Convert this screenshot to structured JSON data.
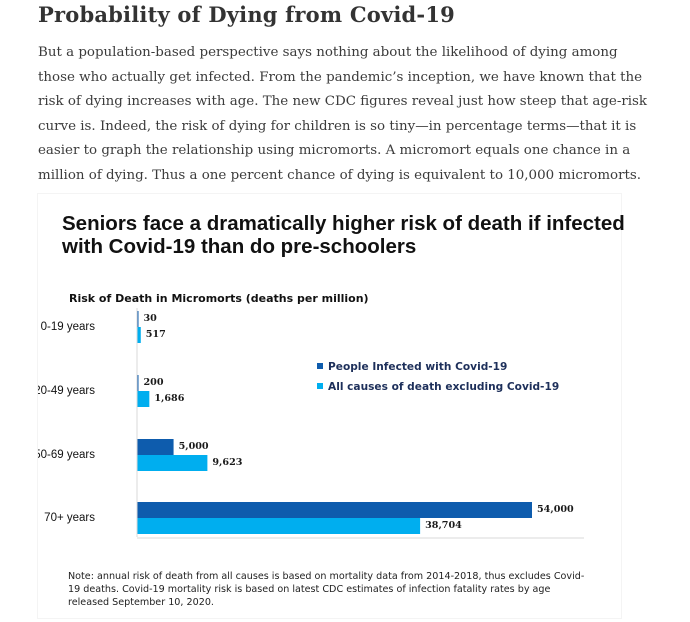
{
  "article": {
    "heading": "Probability of Dying from Covid-19",
    "paragraph": "But a population-based perspective says nothing about the likelihood of dying among those who actually get infected. From the pandemic’s inception, we have known that the risk of dying increases with age. The new CDC figures reveal just how steep that age-risk curve is. Indeed, the risk of dying for children is so tiny—in percentage terms—that it is easier to graph the relationship using micromorts. A micromort equals one chance in a million of dying. Thus a one percent chance of dying is equivalent to 10,000 micromorts."
  },
  "chart": {
    "title_line1": "Seniors face a dramatically higher risk of death if infected",
    "title_line2": "with Covid-19 than do pre-schoolers",
    "note": "Note: annual risk of death from all causes is based on mortality data from 2014-2018, thus excludes Covid-19 deaths. Covid-19 mortality risk is based on latest CDC estimates of infection fatality rates by age released September 10, 2020."
  },
  "chart_data": {
    "type": "bar",
    "orientation": "horizontal",
    "subtitle": "Risk of Death in Micromorts (deaths per million)",
    "categories": [
      "0-19 years",
      "20-49 years",
      "50-69 years",
      "70+ years"
    ],
    "series": [
      {
        "name": "People Infected with Covid-19",
        "color": "#0e5cad",
        "values": [
          30,
          200,
          5000,
          54000
        ],
        "labels": [
          "30",
          "200",
          "5,000",
          "54,000"
        ]
      },
      {
        "name": "All causes of death excluding Covid-19",
        "color": "#00aeef",
        "values": [
          517,
          1686,
          9623,
          38704
        ],
        "labels": [
          "517",
          "1,686",
          "9,623",
          "38,704"
        ]
      }
    ],
    "xlim": [
      0,
      54000
    ],
    "grid": false,
    "legend_position": "right"
  }
}
